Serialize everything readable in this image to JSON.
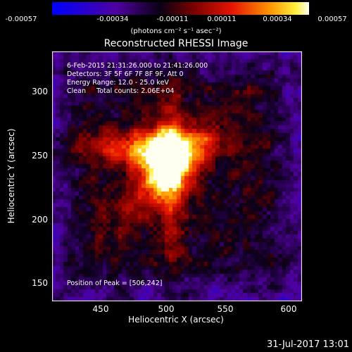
{
  "colorbar": {
    "ticks": [
      "-0.00057",
      "-0.00034",
      "-0.00011",
      "0.00011",
      "0.00034",
      "0.00057"
    ],
    "units": "(photons cm⁻² s⁻¹ asec⁻²)"
  },
  "title": "Reconstructed RHESSI Image",
  "info": {
    "line1": "6-Feb-2015 21:31:26.000 to 21:41:26.000",
    "line2": "Detectors: 3F 5F 6F 7F 8F 9F, Att 0",
    "line3": "Energy Range: 12.0 - 25.0 keV",
    "line4": "Clean     Total counts: 2.06E+04"
  },
  "peak": "Position of Peak = [506,242]",
  "axes": {
    "xlabel": "Heliocentric X (arcsec)",
    "ylabel": "Heliocentric Y (arcsec)",
    "xticks": [
      "450",
      "500",
      "550",
      "600"
    ],
    "yticks": [
      "150",
      "200",
      "250",
      "300"
    ],
    "xrange": [
      414,
      606
    ],
    "yrange": [
      136,
      328
    ]
  },
  "timestamp": "31-Jul-2017 13:01",
  "colors": {
    "background": "#000000",
    "text": "#ffffff"
  }
}
